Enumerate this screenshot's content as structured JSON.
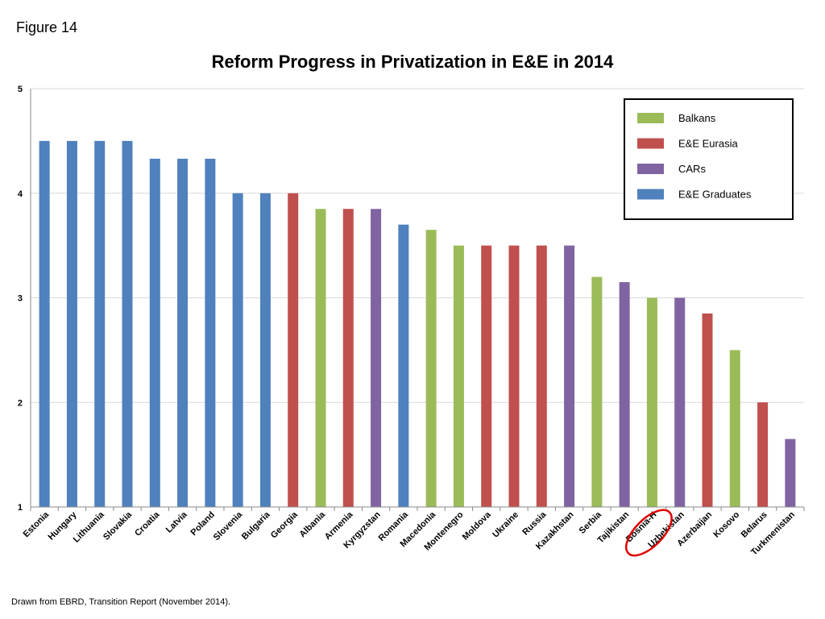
{
  "figure_label": "Figure 14",
  "source_note": "Drawn from EBRD, Transition Report (November 2014).",
  "colors": {
    "Balkans": "#9bbb59",
    "E&E Eurasia": "#c0504d",
    "CARs": "#8064a2",
    "E&E Graduates": "#4f81bd",
    "highlight": "#e00000",
    "grid": "#d9d9d9"
  },
  "chart_data": {
    "type": "bar",
    "title": "Reform Progress in Privatization in E&E in 2014",
    "xlabel": "",
    "ylabel": "",
    "ylim": [
      1,
      5
    ],
    "yticks": [
      "1",
      "2",
      "3",
      "4",
      "5"
    ],
    "grid": true,
    "legend_position": "top-right",
    "legend": [
      "Balkans",
      "E&E Eurasia",
      "CARs",
      "E&E Graduates"
    ],
    "categories": [
      "Estonia",
      "Hungary",
      "Lithuania",
      "Slovakia",
      "Croatia",
      "Latvia",
      "Poland",
      "Slovenia",
      "Bulgaria",
      "Georgia",
      "Albania",
      "Armenia",
      "Kyrgyzstan",
      "Romania",
      "Macedonia",
      "Montenegro",
      "Moldova",
      "Ukraine",
      "Russia",
      "Kazakhstan",
      "Serbia",
      "Tajikistan",
      "Bosnia-H",
      "Uzbekistan",
      "Azerbaijan",
      "Kosovo",
      "Belarus",
      "Turkmenistan"
    ],
    "values": [
      4.5,
      4.5,
      4.5,
      4.5,
      4.33,
      4.33,
      4.33,
      4.0,
      4.0,
      4.0,
      3.85,
      3.85,
      3.85,
      3.7,
      3.65,
      3.5,
      3.5,
      3.5,
      3.5,
      3.5,
      3.2,
      3.15,
      3.0,
      3.0,
      2.85,
      2.5,
      2.0,
      1.65
    ],
    "groups": [
      "E&E Graduates",
      "E&E Graduates",
      "E&E Graduates",
      "E&E Graduates",
      "E&E Graduates",
      "E&E Graduates",
      "E&E Graduates",
      "E&E Graduates",
      "E&E Graduates",
      "E&E Eurasia",
      "Balkans",
      "E&E Eurasia",
      "CARs",
      "E&E Graduates",
      "Balkans",
      "Balkans",
      "E&E Eurasia",
      "E&E Eurasia",
      "E&E Eurasia",
      "CARs",
      "Balkans",
      "CARs",
      "Balkans",
      "CARs",
      "E&E Eurasia",
      "Balkans",
      "E&E Eurasia",
      "CARs"
    ],
    "highlighted_category": "Bosnia-H"
  }
}
